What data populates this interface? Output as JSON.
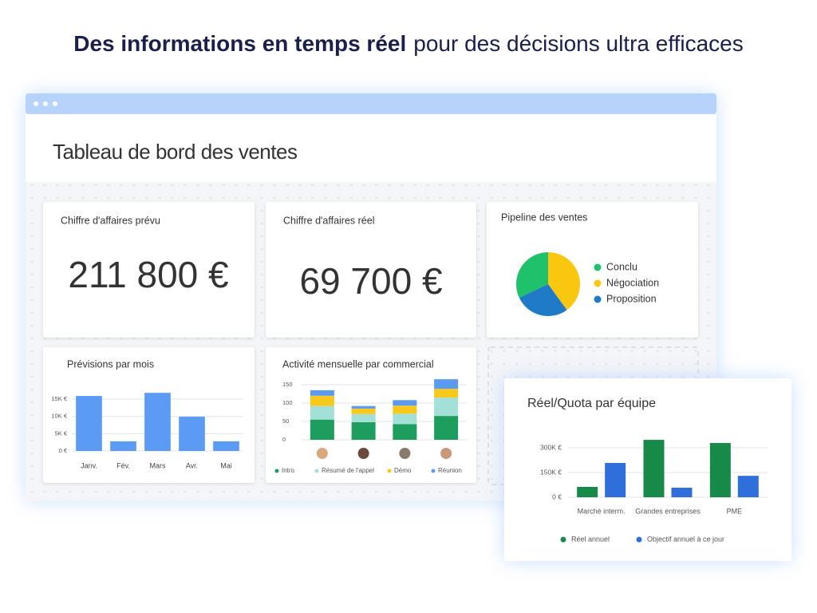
{
  "headline": {
    "bold": "Des informations en temps réel",
    "rest": "pour des décisions ultra efficaces"
  },
  "dashboard_title": "Tableau de bord des ventes",
  "kpis": [
    {
      "label": "Chiffre d'affaires prévu",
      "value": "211 800 €"
    },
    {
      "label": "Chiffre d'affaires réel",
      "value": "69 700 €"
    }
  ],
  "chart_data": [
    {
      "type": "pie",
      "title": "Pipeline des ventes",
      "categories": [
        "Conclu",
        "Négociation",
        "Proposition"
      ],
      "values": [
        32,
        40,
        28
      ],
      "colors": [
        "#1fc16b",
        "#f9c710",
        "#1f7ac7"
      ],
      "legend": "right"
    },
    {
      "type": "bar",
      "title": "Prévisions par mois",
      "categories": [
        "Janv.",
        "Fév.",
        "Mars",
        "Avr.",
        "Mai"
      ],
      "values": [
        15900,
        2800,
        16800,
        9900,
        2800
      ],
      "color": "#5b9bf5",
      "ylim": [
        0,
        17000
      ],
      "yticks": [
        {
          "value": 0,
          "label": "0 €"
        },
        {
          "value": 5000,
          "label": "5K €"
        },
        {
          "value": 10000,
          "label": "10K €"
        },
        {
          "value": 15000,
          "label": "15K €"
        }
      ],
      "grid": true
    },
    {
      "type": "stacked_bar",
      "title": "Activité mensuelle par commercial",
      "categories": [
        null,
        null,
        null,
        null
      ],
      "series": [
        {
          "name": "Intro",
          "color": "#1e9e5e",
          "values": [
            55,
            48,
            43,
            65
          ]
        },
        {
          "name": "Résumé de l'appel",
          "color": "#a3e0d8",
          "values": [
            37,
            22,
            28,
            50
          ]
        },
        {
          "name": "Démo",
          "color": "#f8c81c",
          "values": [
            28,
            15,
            22,
            24
          ]
        },
        {
          "name": "Réunion",
          "color": "#5b9bef",
          "values": [
            15,
            7,
            15,
            26
          ]
        }
      ],
      "ylim": [
        0,
        170
      ],
      "yticks": [
        0,
        50,
        100,
        150
      ],
      "legend": "bottom"
    },
    {
      "type": "grouped_bar",
      "title": "Réel/Quota par équipe",
      "categories": [
        "Marché interm.",
        "Grandes entreprises",
        "PME"
      ],
      "series": [
        {
          "name": "Réel annuel",
          "color": "#178a4a",
          "values": [
            63000,
            348000,
            329000
          ]
        },
        {
          "name": "Objectif annuel à ce jour",
          "color": "#2f6fdb",
          "values": [
            208000,
            58000,
            130000
          ]
        }
      ],
      "ylim": [
        0,
        360000
      ],
      "yticks": [
        {
          "value": 0,
          "label": "0 €"
        },
        {
          "value": 150000,
          "label": "150K €"
        },
        {
          "value": 300000,
          "label": "300K €"
        }
      ],
      "grid": true,
      "legend": "bottom"
    }
  ]
}
